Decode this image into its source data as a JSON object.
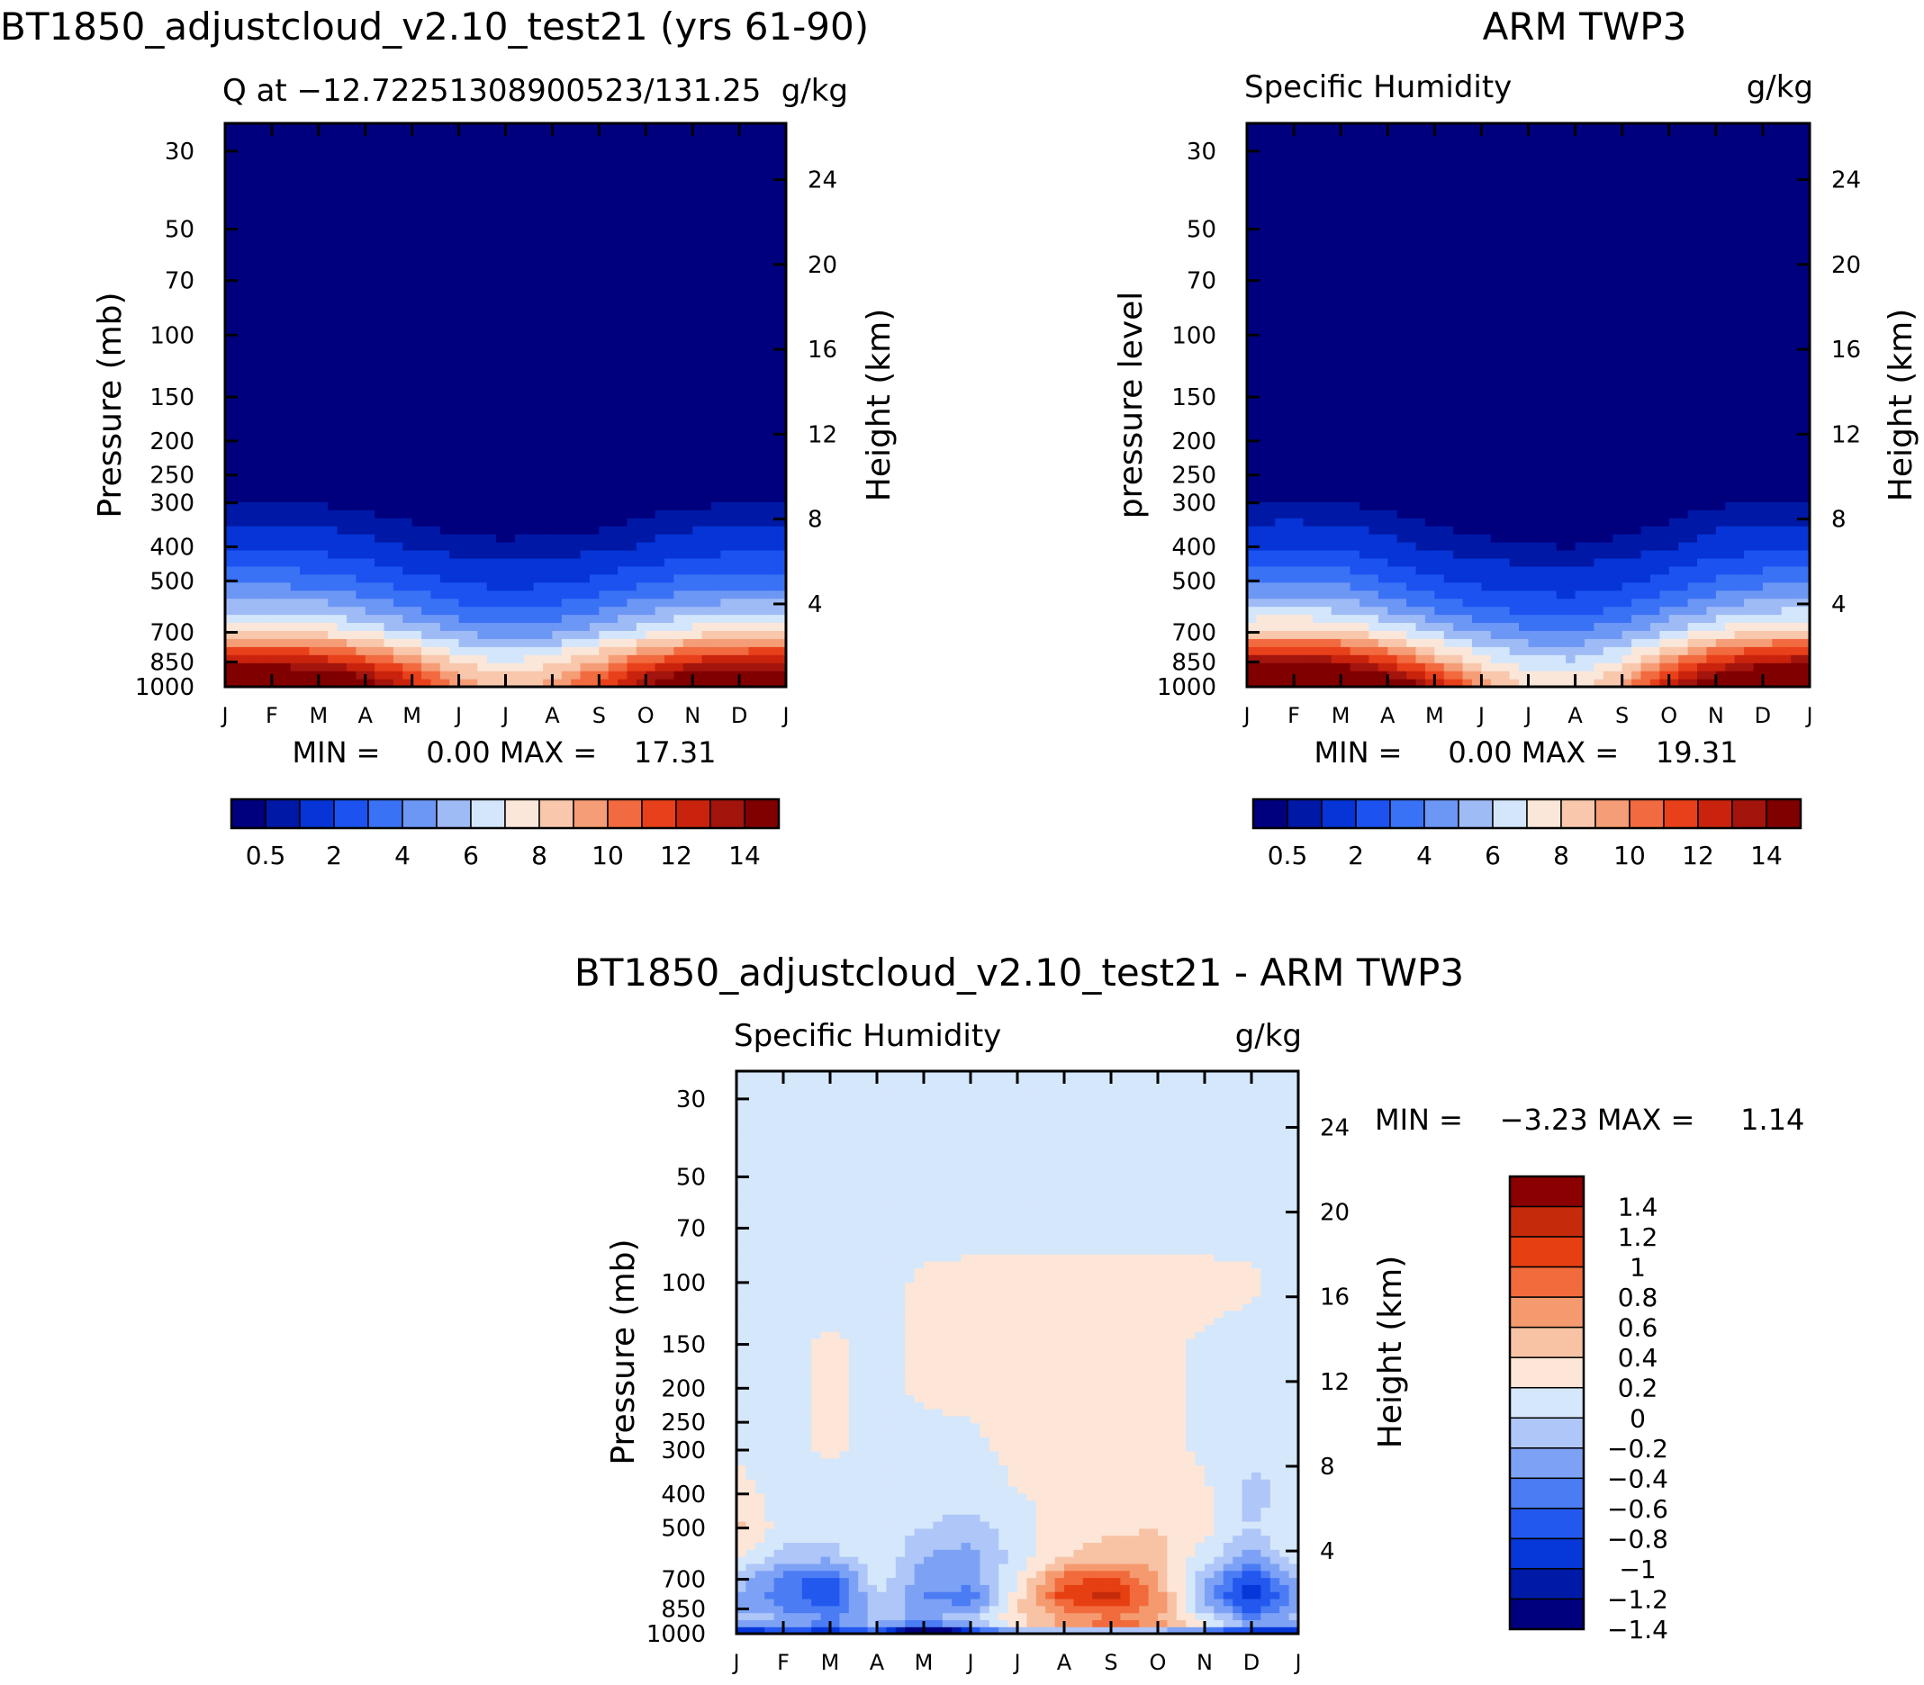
{
  "figure": {
    "left_title": "BT1850_adjustcloud_v2.10_test21 (yrs 61-90)",
    "right_title": "ARM TWP3",
    "bottom_title": "BT1850_adjustcloud_v2.10_test21 - ARM TWP3"
  },
  "colors": {
    "abs_levels": [
      "#00007f",
      "#0018a6",
      "#0634d6",
      "#1b52f0",
      "#3a72f5",
      "#6d97f5",
      "#9fbbf5",
      "#d4e6fb",
      "#fbe7d9",
      "#f8c7ac",
      "#f59d76",
      "#f26a3f",
      "#e8401a",
      "#c9230d",
      "#a3140c",
      "#800000"
    ],
    "diff_levels": [
      "#00007f",
      "#001aa8",
      "#0637d8",
      "#2358ef",
      "#4b7cf4",
      "#7da2f5",
      "#aec6f8",
      "#d5e7fb",
      "#fde6d7",
      "#f8c3a4",
      "#f59a6f",
      "#f26b3c",
      "#e63f12",
      "#c52b0a",
      "#8b0000"
    ]
  },
  "chart_data": [
    {
      "id": "model",
      "type": "heatmap",
      "title": "Q at -12.7225130890052 / 131.25",
      "subtitle_left": "Q at −12.72251308900523/131.25",
      "subtitle_right": "g/kg",
      "ylabel": "Pressure (mb)",
      "ylabel_right": "Height (km)",
      "x_ticks": [
        "J",
        "F",
        "M",
        "A",
        "M",
        "J",
        "J",
        "A",
        "S",
        "O",
        "N",
        "D",
        "J"
      ],
      "y_ticks": [
        30,
        50,
        70,
        100,
        150,
        200,
        250,
        300,
        400,
        500,
        700,
        850,
        1000
      ],
      "y_right_ticks": [
        4,
        8,
        12,
        16,
        20,
        24
      ],
      "ylim": [
        1000,
        25
      ],
      "min_max": "MIN =     0.00 MAX =    17.31",
      "colorbar_labels": [
        "0.5",
        "2",
        "4",
        "6",
        "8",
        "10",
        "12",
        "14"
      ],
      "contour_levels": [
        0.5,
        1,
        2,
        3,
        4,
        5,
        6,
        7,
        8,
        9,
        10,
        11,
        12,
        13,
        14
      ],
      "data": {
        "months": [
          "Jan",
          "Feb",
          "Mar",
          "Apr",
          "May",
          "Jun",
          "Jul",
          "Aug",
          "Sep",
          "Oct",
          "Nov",
          "Dec",
          "Jan"
        ],
        "pressure": [
          1000,
          925,
          850,
          775,
          700,
          600,
          500,
          400,
          350,
          300
        ],
        "values": [
          [
            17.0,
            17.2,
            16.8,
            15.0,
            12.5,
            9.6,
            8.5,
            9.3,
            11.5,
            14.0,
            16.0,
            16.9,
            17.0
          ],
          [
            15.6,
            15.8,
            15.2,
            13.6,
            11.6,
            9.0,
            8.0,
            8.8,
            10.6,
            12.9,
            14.7,
            15.5,
            15.6
          ],
          [
            13.1,
            13.3,
            12.9,
            11.6,
            9.8,
            7.9,
            7.0,
            7.7,
            9.2,
            11.0,
            12.4,
            13.0,
            13.1
          ],
          [
            10.6,
            10.8,
            10.5,
            9.4,
            8.0,
            6.6,
            5.9,
            6.4,
            7.6,
            9.0,
            10.1,
            10.5,
            10.6
          ],
          [
            8.0,
            8.2,
            7.9,
            7.0,
            6.0,
            5.0,
            4.5,
            4.8,
            5.7,
            6.8,
            7.6,
            7.9,
            8.0
          ],
          [
            5.7,
            5.8,
            5.6,
            4.9,
            4.1,
            3.3,
            3.0,
            3.2,
            3.8,
            4.7,
            5.3,
            5.6,
            5.7
          ],
          [
            3.6,
            3.7,
            3.5,
            3.0,
            2.4,
            1.9,
            1.6,
            1.8,
            2.2,
            2.8,
            3.3,
            3.5,
            3.6
          ],
          [
            1.7,
            1.8,
            1.7,
            1.3,
            0.95,
            0.7,
            0.6,
            0.65,
            0.8,
            1.1,
            1.5,
            1.7,
            1.7
          ],
          [
            1.05,
            1.1,
            1.0,
            0.75,
            0.55,
            0.4,
            0.35,
            0.38,
            0.45,
            0.65,
            0.9,
            1.0,
            1.05
          ],
          [
            0.5,
            0.52,
            0.48,
            0.34,
            0.24,
            0.17,
            0.15,
            0.16,
            0.2,
            0.3,
            0.42,
            0.48,
            0.5
          ]
        ]
      }
    },
    {
      "id": "obs",
      "type": "heatmap",
      "title": "Specific Humidity",
      "subtitle_right": "g/kg",
      "ylabel": "pressure level",
      "ylabel_right": "Height (km)",
      "x_ticks": [
        "J",
        "F",
        "M",
        "A",
        "M",
        "J",
        "J",
        "A",
        "S",
        "O",
        "N",
        "D",
        "J"
      ],
      "y_ticks": [
        30,
        50,
        70,
        100,
        150,
        200,
        250,
        300,
        400,
        500,
        700,
        850,
        1000
      ],
      "y_right_ticks": [
        4,
        8,
        12,
        16,
        20,
        24
      ],
      "ylim": [
        1000,
        25
      ],
      "min_max": "MIN =     0.00 MAX =    19.31",
      "colorbar_labels": [
        "0.5",
        "2",
        "4",
        "6",
        "8",
        "10",
        "12",
        "14"
      ],
      "contour_levels": [
        0.5,
        1,
        2,
        3,
        4,
        5,
        6,
        7,
        8,
        9,
        10,
        11,
        12,
        13,
        14
      ],
      "data": {
        "months": [
          "Jan",
          "Feb",
          "Mar",
          "Apr",
          "May",
          "Jun",
          "Jul",
          "Aug",
          "Sep",
          "Oct",
          "Nov",
          "Dec",
          "Jan"
        ],
        "pressure": [
          1000,
          925,
          850,
          775,
          700,
          600,
          500,
          400,
          350,
          300
        ],
        "values": [
          [
            18.8,
            19.0,
            18.5,
            16.5,
            13.2,
            9.8,
            8.0,
            7.6,
            9.2,
            12.8,
            15.8,
            18.0,
            18.8
          ],
          [
            16.6,
            16.8,
            16.2,
            14.3,
            11.6,
            8.8,
            7.4,
            7.2,
            8.6,
            11.5,
            14.2,
            16.0,
            16.6
          ],
          [
            13.8,
            14.0,
            13.5,
            11.8,
            9.6,
            7.5,
            6.4,
            6.2,
            7.4,
            9.8,
            12.0,
            13.4,
            13.8
          ],
          [
            11.2,
            11.4,
            10.9,
            9.6,
            7.8,
            6.3,
            5.4,
            5.2,
            6.2,
            8.0,
            9.8,
            10.9,
            11.2
          ],
          [
            8.4,
            8.6,
            8.2,
            7.2,
            5.9,
            4.9,
            4.2,
            4.0,
            4.8,
            6.1,
            7.4,
            8.2,
            8.4
          ],
          [
            6.0,
            6.1,
            5.8,
            4.9,
            3.9,
            3.1,
            2.7,
            2.6,
            3.1,
            4.1,
            5.0,
            5.7,
            6.0
          ],
          [
            3.8,
            3.9,
            3.7,
            3.0,
            2.2,
            1.7,
            1.45,
            1.4,
            1.7,
            2.4,
            3.1,
            3.6,
            3.8
          ],
          [
            1.8,
            1.85,
            1.75,
            1.3,
            0.85,
            0.62,
            0.52,
            0.5,
            0.62,
            0.95,
            1.45,
            1.7,
            1.8
          ],
          [
            1.1,
            1.12,
            1.05,
            0.75,
            0.5,
            0.38,
            0.32,
            0.3,
            0.38,
            0.58,
            0.9,
            1.05,
            1.1
          ],
          [
            0.52,
            0.55,
            0.5,
            0.34,
            0.22,
            0.16,
            0.13,
            0.12,
            0.16,
            0.26,
            0.42,
            0.5,
            0.52
          ]
        ]
      }
    },
    {
      "id": "diff",
      "type": "heatmap",
      "title": "Specific Humidity",
      "subtitle_right": "g/kg",
      "ylabel": "Pressure (mb)",
      "ylabel_right": "Height (km)",
      "x_ticks": [
        "J",
        "F",
        "M",
        "A",
        "M",
        "J",
        "J",
        "A",
        "S",
        "O",
        "N",
        "D",
        "J"
      ],
      "y_ticks": [
        30,
        50,
        70,
        100,
        150,
        200,
        250,
        300,
        400,
        500,
        700,
        850,
        1000
      ],
      "y_right_ticks": [
        4,
        8,
        12,
        16,
        20,
        24
      ],
      "ylim": [
        1000,
        25
      ],
      "min_max": "MIN =    −3.23 MAX =     1.14",
      "colorbar_labels": [
        "1.4",
        "1.2",
        "1",
        "0.8",
        "0.6",
        "0.4",
        "0.2",
        "0",
        "−0.2",
        "−0.4",
        "−0.6",
        "−0.8",
        "−1",
        "−1.2",
        "−1.4"
      ],
      "contour_levels": [
        -1.4,
        -1.2,
        -1,
        -0.8,
        -0.6,
        -0.4,
        -0.2,
        0,
        0.2,
        0.4,
        0.6,
        0.8,
        1,
        1.2,
        1.4
      ],
      "data": {
        "months": [
          "Jan",
          "Feb",
          "Mar",
          "Apr",
          "May",
          "Jun",
          "Jul",
          "Aug",
          "Sep",
          "Oct",
          "Nov",
          "Dec",
          "Jan"
        ],
        "pressure": [
          1000,
          950,
          900,
          850,
          775,
          700,
          600,
          500,
          400,
          300,
          200,
          150,
          100,
          70,
          50,
          30
        ],
        "values": [
          [
            -1.6,
            -1.2,
            -1.4,
            -1.0,
            -2.8,
            -1.3,
            -0.9,
            -1.0,
            -1.2,
            -1.1,
            -1.2,
            -1.4,
            -1.6
          ],
          [
            -0.6,
            -0.5,
            -0.7,
            -0.4,
            -0.8,
            -0.5,
            0.2,
            0.5,
            0.7,
            0.6,
            0.1,
            -0.5,
            -0.6
          ],
          [
            -0.3,
            -0.4,
            -0.6,
            -0.3,
            -0.5,
            -0.2,
            0.1,
            0.4,
            0.6,
            0.4,
            -0.1,
            -0.6,
            -0.3
          ],
          [
            -0.4,
            -0.6,
            -0.8,
            -0.3,
            -0.5,
            -0.6,
            0.2,
            0.6,
            0.8,
            0.5,
            -0.3,
            -0.9,
            -0.4
          ],
          [
            -0.4,
            -0.7,
            -1.0,
            -0.2,
            -0.6,
            -0.7,
            0.1,
            0.9,
            1.1,
            0.5,
            -0.5,
            -1.2,
            -0.5
          ],
          [
            -0.3,
            -0.7,
            -0.9,
            -0.1,
            -0.5,
            -0.5,
            0.0,
            0.7,
            0.9,
            0.4,
            -0.4,
            -1.0,
            -0.4
          ],
          [
            0.1,
            -0.3,
            -0.3,
            0.0,
            -0.4,
            -0.5,
            -0.1,
            0.2,
            0.3,
            0.3,
            -0.1,
            -0.5,
            0.0
          ],
          [
            0.25,
            -0.1,
            -0.1,
            -0.1,
            -0.2,
            -0.3,
            -0.1,
            0.1,
            0.15,
            0.2,
            0.05,
            -0.2,
            0.0
          ],
          [
            0.1,
            -0.1,
            -0.2,
            -0.1,
            -0.1,
            -0.1,
            0.0,
            0.05,
            0.1,
            0.05,
            0.05,
            -0.3,
            -0.1
          ],
          [
            -0.05,
            -0.1,
            0.05,
            -0.1,
            -0.1,
            -0.05,
            0.05,
            0.1,
            0.1,
            0.1,
            -0.05,
            -0.1,
            -0.1
          ],
          [
            -0.1,
            -0.1,
            0.05,
            -0.1,
            0.05,
            0.05,
            0.1,
            0.1,
            0.1,
            0.1,
            -0.05,
            -0.1,
            -0.1
          ],
          [
            -0.1,
            -0.1,
            0.05,
            -0.1,
            0.05,
            0.1,
            0.1,
            0.1,
            0.1,
            0.1,
            -0.05,
            -0.1,
            -0.1
          ],
          [
            -0.1,
            -0.1,
            -0.1,
            -0.1,
            0.05,
            0.1,
            0.1,
            0.1,
            0.1,
            0.1,
            0.1,
            0.05,
            -0.1
          ],
          [
            -0.1,
            -0.1,
            -0.1,
            -0.1,
            -0.1,
            -0.1,
            -0.1,
            -0.1,
            -0.1,
            -0.1,
            -0.1,
            -0.1,
            -0.1
          ],
          [
            -0.1,
            -0.1,
            -0.1,
            -0.1,
            -0.1,
            -0.1,
            -0.1,
            -0.1,
            -0.1,
            -0.1,
            -0.1,
            -0.1,
            -0.1
          ],
          [
            -0.1,
            -0.1,
            -0.1,
            -0.1,
            -0.1,
            -0.1,
            -0.1,
            -0.1,
            -0.1,
            -0.1,
            -0.1,
            -0.1,
            -0.1
          ]
        ]
      }
    }
  ]
}
